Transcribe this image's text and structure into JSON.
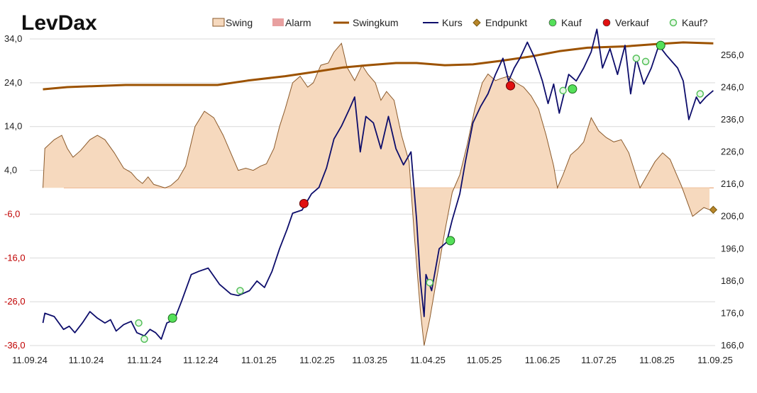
{
  "chart_data": {
    "type": "line",
    "title": "LevDax",
    "legend": [
      {
        "key": "swing",
        "label": "Swing",
        "kind": "area",
        "fill": "#f6d9be",
        "stroke": "#8b5a2b"
      },
      {
        "key": "alarm",
        "label": "Alarm",
        "kind": "area",
        "fill": "#e8a0a0"
      },
      {
        "key": "swingkum",
        "label": "Swingkum",
        "kind": "line",
        "color": "#9c5200"
      },
      {
        "key": "kurs",
        "label": "Kurs",
        "kind": "line",
        "color": "#0d0d6b"
      },
      {
        "key": "endpunkt",
        "label": "Endpunkt",
        "kind": "diamond",
        "color": "#7a5a10"
      },
      {
        "key": "kauf",
        "label": "Kauf",
        "kind": "dot",
        "color": "#55e05a"
      },
      {
        "key": "verkauf",
        "label": "Verkauf",
        "kind": "dot",
        "color": "#e01010"
      },
      {
        "key": "kauf_q",
        "label": "Kauf?",
        "kind": "ring",
        "color": "#55c05a"
      }
    ],
    "legend_position": "top",
    "x_range": [
      "2024-09-11",
      "2025-09-11"
    ],
    "x_ticks": [
      "11.09.24",
      "11.10.24",
      "11.11.24",
      "11.12.24",
      "11.01.25",
      "11.02.25",
      "11.03.25",
      "11.04.25",
      "11.05.25",
      "11.06.25",
      "11.07.25",
      "11.08.25",
      "11.09.25"
    ],
    "y_left": {
      "min": -36,
      "max": 34,
      "ticks": [
        "34,0",
        "24,0",
        "14,0",
        "4,0",
        "-6,0",
        "-16,0",
        "-26,0",
        "-36,0"
      ]
    },
    "y_right": {
      "min": 166,
      "max": 261,
      "ticks": [
        "256,0",
        "246,0",
        "236,0",
        "226,0",
        "216,0",
        "206,0",
        "196,0",
        "186,0",
        "176,0",
        "166,0"
      ]
    },
    "series": {
      "swing": [
        [
          "2024-09-18",
          0.0
        ],
        [
          "2024-09-19",
          9.0
        ],
        [
          "2024-09-24",
          11.0
        ],
        [
          "2024-09-28",
          12.0
        ],
        [
          "2024-10-01",
          9.0
        ],
        [
          "2024-10-04",
          7.0
        ],
        [
          "2024-10-08",
          8.5
        ],
        [
          "2024-10-13",
          11.0
        ],
        [
          "2024-10-17",
          12.0
        ],
        [
          "2024-10-21",
          11.0
        ],
        [
          "2024-10-26",
          8.0
        ],
        [
          "2024-10-31",
          4.5
        ],
        [
          "2024-11-04",
          3.5
        ],
        [
          "2024-11-07",
          2.0
        ],
        [
          "2024-11-10",
          1.0
        ],
        [
          "2024-11-13",
          2.5
        ],
        [
          "2024-11-16",
          0.8
        ],
        [
          "2024-11-22",
          0.0
        ],
        [
          "2024-11-25",
          0.5
        ],
        [
          "2024-11-29",
          2.0
        ],
        [
          "2024-12-03",
          5.0
        ],
        [
          "2024-12-08",
          14.0
        ],
        [
          "2024-12-13",
          17.5
        ],
        [
          "2024-12-18",
          16.0
        ],
        [
          "2024-12-23",
          12.0
        ],
        [
          "2024-12-27",
          8.0
        ],
        [
          "2024-12-31",
          4.0
        ],
        [
          "2025-01-04",
          4.5
        ],
        [
          "2025-01-08",
          4.0
        ],
        [
          "2025-01-12",
          5.0
        ],
        [
          "2025-01-15",
          5.5
        ],
        [
          "2025-01-19",
          9.0
        ],
        [
          "2025-01-22",
          14.0
        ],
        [
          "2025-01-25",
          18.0
        ],
        [
          "2025-01-29",
          24.0
        ],
        [
          "2025-02-02",
          25.5
        ],
        [
          "2025-02-06",
          23.0
        ],
        [
          "2025-02-09",
          24.0
        ],
        [
          "2025-02-13",
          28.0
        ],
        [
          "2025-02-17",
          28.5
        ],
        [
          "2025-02-20",
          31.0
        ],
        [
          "2025-02-24",
          33.0
        ],
        [
          "2025-02-27",
          27.5
        ],
        [
          "2025-03-03",
          24.5
        ],
        [
          "2025-03-07",
          28.0
        ],
        [
          "2025-03-10",
          26.0
        ],
        [
          "2025-03-14",
          24.0
        ],
        [
          "2025-03-17",
          20.0
        ],
        [
          "2025-03-20",
          22.0
        ],
        [
          "2025-03-24",
          20.0
        ],
        [
          "2025-03-28",
          12.0
        ],
        [
          "2025-04-01",
          6.0
        ],
        [
          "2025-04-04",
          -12.0
        ],
        [
          "2025-04-07",
          -28.0
        ],
        [
          "2025-04-09",
          -36.0
        ],
        [
          "2025-04-12",
          -30.0
        ],
        [
          "2025-04-16",
          -20.0
        ],
        [
          "2025-04-20",
          -10.0
        ],
        [
          "2025-04-24",
          -1.0
        ],
        [
          "2025-04-28",
          3.0
        ],
        [
          "2025-05-02",
          10.0
        ],
        [
          "2025-05-06",
          18.0
        ],
        [
          "2025-05-10",
          24.0
        ],
        [
          "2025-05-13",
          26.0
        ],
        [
          "2025-05-17",
          24.5
        ],
        [
          "2025-05-20",
          25.0
        ],
        [
          "2025-05-24",
          25.5
        ],
        [
          "2025-05-28",
          24.0
        ],
        [
          "2025-06-01",
          23.0
        ],
        [
          "2025-06-05",
          21.0
        ],
        [
          "2025-06-09",
          18.0
        ],
        [
          "2025-06-13",
          12.0
        ],
        [
          "2025-06-17",
          5.0
        ],
        [
          "2025-06-19",
          0.0
        ],
        [
          "2025-06-22",
          3.0
        ],
        [
          "2025-06-26",
          7.5
        ],
        [
          "2025-06-30",
          9.0
        ],
        [
          "2025-07-03",
          10.5
        ],
        [
          "2025-07-07",
          16.0
        ],
        [
          "2025-07-11",
          13.0
        ],
        [
          "2025-07-15",
          11.5
        ],
        [
          "2025-07-19",
          10.5
        ],
        [
          "2025-07-23",
          11.0
        ],
        [
          "2025-07-27",
          8.0
        ],
        [
          "2025-07-30",
          4.0
        ],
        [
          "2025-08-02",
          0.0
        ],
        [
          "2025-08-06",
          3.0
        ],
        [
          "2025-08-10",
          6.0
        ],
        [
          "2025-08-14",
          8.0
        ],
        [
          "2025-08-18",
          6.5
        ],
        [
          "2025-08-21",
          3.5
        ],
        [
          "2025-08-24",
          0.5
        ],
        [
          "2025-08-27",
          -3.0
        ],
        [
          "2025-08-30",
          -6.5
        ],
        [
          "2025-09-02",
          -5.5
        ],
        [
          "2025-09-05",
          -4.5
        ],
        [
          "2025-09-08",
          -5.0
        ]
      ],
      "swingkum": [
        [
          "2024-09-18",
          22.5
        ],
        [
          "2024-10-01",
          23.0
        ],
        [
          "2024-11-01",
          23.5
        ],
        [
          "2024-12-01",
          23.5
        ],
        [
          "2024-12-20",
          23.5
        ],
        [
          "2025-01-05",
          24.5
        ],
        [
          "2025-01-25",
          25.5
        ],
        [
          "2025-02-10",
          26.5
        ],
        [
          "2025-02-25",
          27.5
        ],
        [
          "2025-03-10",
          28.0
        ],
        [
          "2025-03-25",
          28.5
        ],
        [
          "2025-04-05",
          28.5
        ],
        [
          "2025-04-20",
          28.0
        ],
        [
          "2025-05-05",
          28.2
        ],
        [
          "2025-05-20",
          29.0
        ],
        [
          "2025-06-05",
          30.0
        ],
        [
          "2025-06-20",
          31.2
        ],
        [
          "2025-07-05",
          32.0
        ],
        [
          "2025-07-25",
          32.3
        ],
        [
          "2025-08-10",
          32.8
        ],
        [
          "2025-08-25",
          33.2
        ],
        [
          "2025-09-10",
          33.0
        ]
      ],
      "kurs": [
        [
          "2024-09-18",
          173.0
        ],
        [
          "2024-09-19",
          176.0
        ],
        [
          "2024-09-24",
          175.0
        ],
        [
          "2024-09-29",
          171.0
        ],
        [
          "2024-10-02",
          172.0
        ],
        [
          "2024-10-05",
          170.0
        ],
        [
          "2024-10-09",
          173.0
        ],
        [
          "2024-10-13",
          176.5
        ],
        [
          "2024-10-17",
          174.5
        ],
        [
          "2024-10-21",
          173.0
        ],
        [
          "2024-10-24",
          174.0
        ],
        [
          "2024-10-27",
          170.5
        ],
        [
          "2024-10-31",
          172.5
        ],
        [
          "2024-11-04",
          173.5
        ],
        [
          "2024-11-07",
          170.0
        ],
        [
          "2024-11-11",
          169.0
        ],
        [
          "2024-11-14",
          171.0
        ],
        [
          "2024-11-17",
          170.0
        ],
        [
          "2024-11-20",
          168.0
        ],
        [
          "2024-11-23",
          173.0
        ],
        [
          "2024-11-27",
          174.0
        ],
        [
          "2024-12-01",
          180.0
        ],
        [
          "2024-12-06",
          188.0
        ],
        [
          "2024-12-10",
          189.0
        ],
        [
          "2024-12-15",
          190.0
        ],
        [
          "2024-12-21",
          185.0
        ],
        [
          "2024-12-27",
          182.0
        ],
        [
          "2024-12-31",
          181.5
        ],
        [
          "2025-01-06",
          183.0
        ],
        [
          "2025-01-10",
          186.0
        ],
        [
          "2025-01-14",
          184.0
        ],
        [
          "2025-01-18",
          189.0
        ],
        [
          "2025-01-22",
          196.0
        ],
        [
          "2025-01-26",
          202.0
        ],
        [
          "2025-01-29",
          207.0
        ],
        [
          "2025-02-03",
          208.0
        ],
        [
          "2025-02-05",
          210.0
        ],
        [
          "2025-02-08",
          213.0
        ],
        [
          "2025-02-12",
          215.0
        ],
        [
          "2025-02-16",
          221.0
        ],
        [
          "2025-02-20",
          230.0
        ],
        [
          "2025-02-24",
          234.0
        ],
        [
          "2025-02-28",
          239.0
        ],
        [
          "2025-03-03",
          243.0
        ],
        [
          "2025-03-06",
          226.0
        ],
        [
          "2025-03-09",
          237.0
        ],
        [
          "2025-03-13",
          235.0
        ],
        [
          "2025-03-17",
          227.0
        ],
        [
          "2025-03-21",
          237.0
        ],
        [
          "2025-03-25",
          227.0
        ],
        [
          "2025-03-29",
          222.0
        ],
        [
          "2025-04-02",
          226.0
        ],
        [
          "2025-04-05",
          205.0
        ],
        [
          "2025-04-07",
          186.0
        ],
        [
          "2025-04-09",
          175.0
        ],
        [
          "2025-04-10",
          188.0
        ],
        [
          "2025-04-13",
          183.0
        ],
        [
          "2025-04-17",
          196.0
        ],
        [
          "2025-04-21",
          198.0
        ],
        [
          "2025-04-24",
          205.0
        ],
        [
          "2025-04-28",
          213.0
        ],
        [
          "2025-05-01",
          223.0
        ],
        [
          "2025-05-05",
          235.0
        ],
        [
          "2025-05-09",
          240.0
        ],
        [
          "2025-05-13",
          244.0
        ],
        [
          "2025-05-17",
          250.0
        ],
        [
          "2025-05-21",
          255.0
        ],
        [
          "2025-05-24",
          248.0
        ],
        [
          "2025-05-27",
          252.0
        ],
        [
          "2025-05-30",
          255.0
        ],
        [
          "2025-06-03",
          260.0
        ],
        [
          "2025-06-07",
          255.0
        ],
        [
          "2025-06-11",
          248.0
        ],
        [
          "2025-06-14",
          241.0
        ],
        [
          "2025-06-17",
          247.0
        ],
        [
          "2025-06-20",
          238.0
        ],
        [
          "2025-06-25",
          250.0
        ],
        [
          "2025-06-29",
          248.0
        ],
        [
          "2025-07-03",
          252.0
        ],
        [
          "2025-07-07",
          257.0
        ],
        [
          "2025-07-10",
          264.0
        ],
        [
          "2025-07-13",
          252.0
        ],
        [
          "2025-07-17",
          258.0
        ],
        [
          "2025-07-21",
          250.0
        ],
        [
          "2025-07-25",
          259.0
        ],
        [
          "2025-07-28",
          244.0
        ],
        [
          "2025-07-31",
          255.0
        ],
        [
          "2025-08-04",
          247.0
        ],
        [
          "2025-08-08",
          252.0
        ],
        [
          "2025-08-12",
          259.0
        ],
        [
          "2025-08-16",
          256.0
        ],
        [
          "2025-08-19",
          254.0
        ],
        [
          "2025-08-22",
          252.0
        ],
        [
          "2025-08-25",
          248.0
        ],
        [
          "2025-08-28",
          236.0
        ],
        [
          "2025-09-01",
          243.0
        ],
        [
          "2025-09-03",
          241.0
        ],
        [
          "2025-09-06",
          243.0
        ],
        [
          "2025-09-10",
          245.0
        ]
      ],
      "endpunkt": [
        [
          "2025-09-10",
          -5.0
        ]
      ],
      "kauf": [
        [
          "2024-11-26",
          174.5
        ],
        [
          "2025-04-23",
          198.5
        ],
        [
          "2025-06-27",
          245.5
        ],
        [
          "2025-08-13",
          259.0
        ]
      ],
      "verkauf": [
        [
          "2025-02-04",
          210.0
        ],
        [
          "2025-05-25",
          246.5
        ]
      ],
      "kauf_q": [
        [
          "2024-11-08",
          173.0
        ],
        [
          "2024-11-11",
          168.0
        ],
        [
          "2025-01-01",
          183.0
        ],
        [
          "2025-04-12",
          185.5
        ],
        [
          "2025-06-22",
          245.0
        ],
        [
          "2025-07-31",
          255.0
        ],
        [
          "2025-08-05",
          254.0
        ],
        [
          "2025-09-03",
          244.0
        ]
      ]
    }
  }
}
